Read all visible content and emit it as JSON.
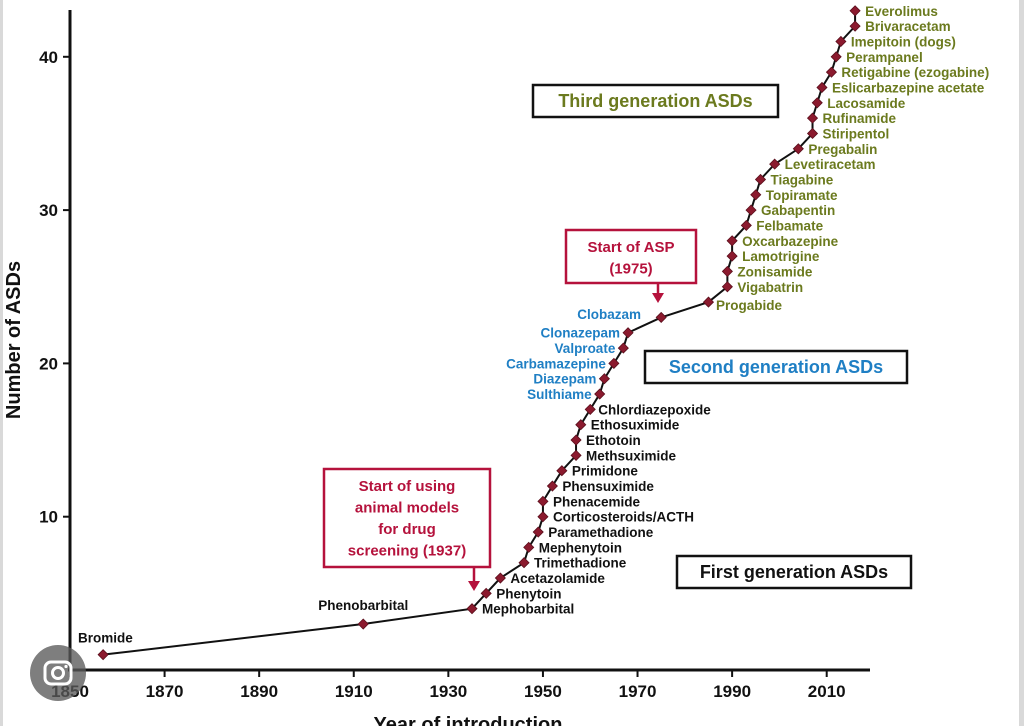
{
  "chart_data": {
    "type": "line",
    "xlabel": "Year of introduction",
    "ylabel": "Number of ASDs",
    "xlim": [
      1850,
      2020
    ],
    "ylim": [
      0,
      44
    ],
    "x_ticks": [
      "1850",
      "1870",
      "1890",
      "1910",
      "1930",
      "1950",
      "1970",
      "1990",
      "2010"
    ],
    "y_ticks": [
      "10",
      "20",
      "30",
      "40"
    ],
    "series": [
      {
        "color": "#8b1a2e",
        "points": [
          {
            "year": 1857,
            "count": 1,
            "label": "Bromide"
          },
          {
            "year": 1912,
            "count": 3,
            "label": "Phenobarbital"
          },
          {
            "year": 1935,
            "count": 4,
            "label": "Mephobarbital"
          },
          {
            "year": 1938,
            "count": 5,
            "label": "Phenytoin"
          },
          {
            "year": 1941,
            "count": 6,
            "label": "Acetazolamide"
          },
          {
            "year": 1946,
            "count": 7,
            "label": "Trimethadione"
          },
          {
            "year": 1947,
            "count": 8,
            "label": "Mephenytoin"
          },
          {
            "year": 1949,
            "count": 9,
            "label": "Paramethadione"
          },
          {
            "year": 1950,
            "count": 10,
            "label": "Corticosteroids/ACTH"
          },
          {
            "year": 1950,
            "count": 11,
            "label": "Phenacemide"
          },
          {
            "year": 1952,
            "count": 12,
            "label": "Phensuximide"
          },
          {
            "year": 1954,
            "count": 13,
            "label": "Primidone"
          },
          {
            "year": 1957,
            "count": 14,
            "label": "Methsuximide"
          },
          {
            "year": 1957,
            "count": 15,
            "label": "Ethotoin"
          },
          {
            "year": 1958,
            "count": 16,
            "label": "Ethosuximide"
          },
          {
            "year": 1960,
            "count": 17,
            "label": "Chlordiazepoxide"
          },
          {
            "year": 1962,
            "count": 18,
            "label": "Sulthiame"
          },
          {
            "year": 1963,
            "count": 19,
            "label": "Diazepam"
          },
          {
            "year": 1965,
            "count": 20,
            "label": "Carbamazepine"
          },
          {
            "year": 1967,
            "count": 21,
            "label": "Valproate"
          },
          {
            "year": 1968,
            "count": 22,
            "label": "Clonazepam"
          },
          {
            "year": 1975,
            "count": 23,
            "label": "Clobazam"
          },
          {
            "year": 1985,
            "count": 24,
            "label": "Progabide"
          },
          {
            "year": 1989,
            "count": 25,
            "label": "Vigabatrin"
          },
          {
            "year": 1989,
            "count": 26,
            "label": "Zonisamide"
          },
          {
            "year": 1990,
            "count": 27,
            "label": "Lamotrigine"
          },
          {
            "year": 1990,
            "count": 28,
            "label": "Oxcarbazepine"
          },
          {
            "year": 1993,
            "count": 29,
            "label": "Felbamate"
          },
          {
            "year": 1994,
            "count": 30,
            "label": "Gabapentin"
          },
          {
            "year": 1995,
            "count": 31,
            "label": "Topiramate"
          },
          {
            "year": 1996,
            "count": 32,
            "label": "Tiagabine"
          },
          {
            "year": 1999,
            "count": 33,
            "label": "Levetiracetam"
          },
          {
            "year": 2004,
            "count": 34,
            "label": "Pregabalin"
          },
          {
            "year": 2007,
            "count": 35,
            "label": "Stiripentol"
          },
          {
            "year": 2007,
            "count": 36,
            "label": "Rufinamide"
          },
          {
            "year": 2008,
            "count": 37,
            "label": "Lacosamide"
          },
          {
            "year": 2009,
            "count": 38,
            "label": "Eslicarbazepine acetate"
          },
          {
            "year": 2011,
            "count": 39,
            "label": "Retigabine (ezogabine)"
          },
          {
            "year": 2012,
            "count": 40,
            "label": "Perampanel"
          },
          {
            "year": 2013,
            "count": 41,
            "label": "Imepitoin (dogs)"
          },
          {
            "year": 2016,
            "count": 42,
            "label": "Brivaracetam"
          },
          {
            "year": 2016,
            "count": 43,
            "label": "Everolimus"
          }
        ]
      }
    ],
    "label_colors": {
      "first": "#111111",
      "second": "#1f7fc4",
      "third": "#6b7a1e"
    },
    "generation_boxes": [
      {
        "text": "First generation ASDs",
        "color": "#111111"
      },
      {
        "text": "Second generation ASDs",
        "color": "#1f7fc4"
      },
      {
        "text": "Third generation ASDs",
        "color": "#6b7a1e"
      }
    ],
    "annotations": [
      {
        "lines": [
          "Start of using",
          "animal models",
          "for drug",
          "screening (1937)"
        ],
        "color": "#b5123c",
        "arrow_to_year": 1937
      },
      {
        "lines": [
          "Start of ASP",
          "(1975)"
        ],
        "color": "#b5123c",
        "arrow_to_year": 1975
      }
    ]
  },
  "overlay": {
    "badge_icon": "lens-icon"
  }
}
